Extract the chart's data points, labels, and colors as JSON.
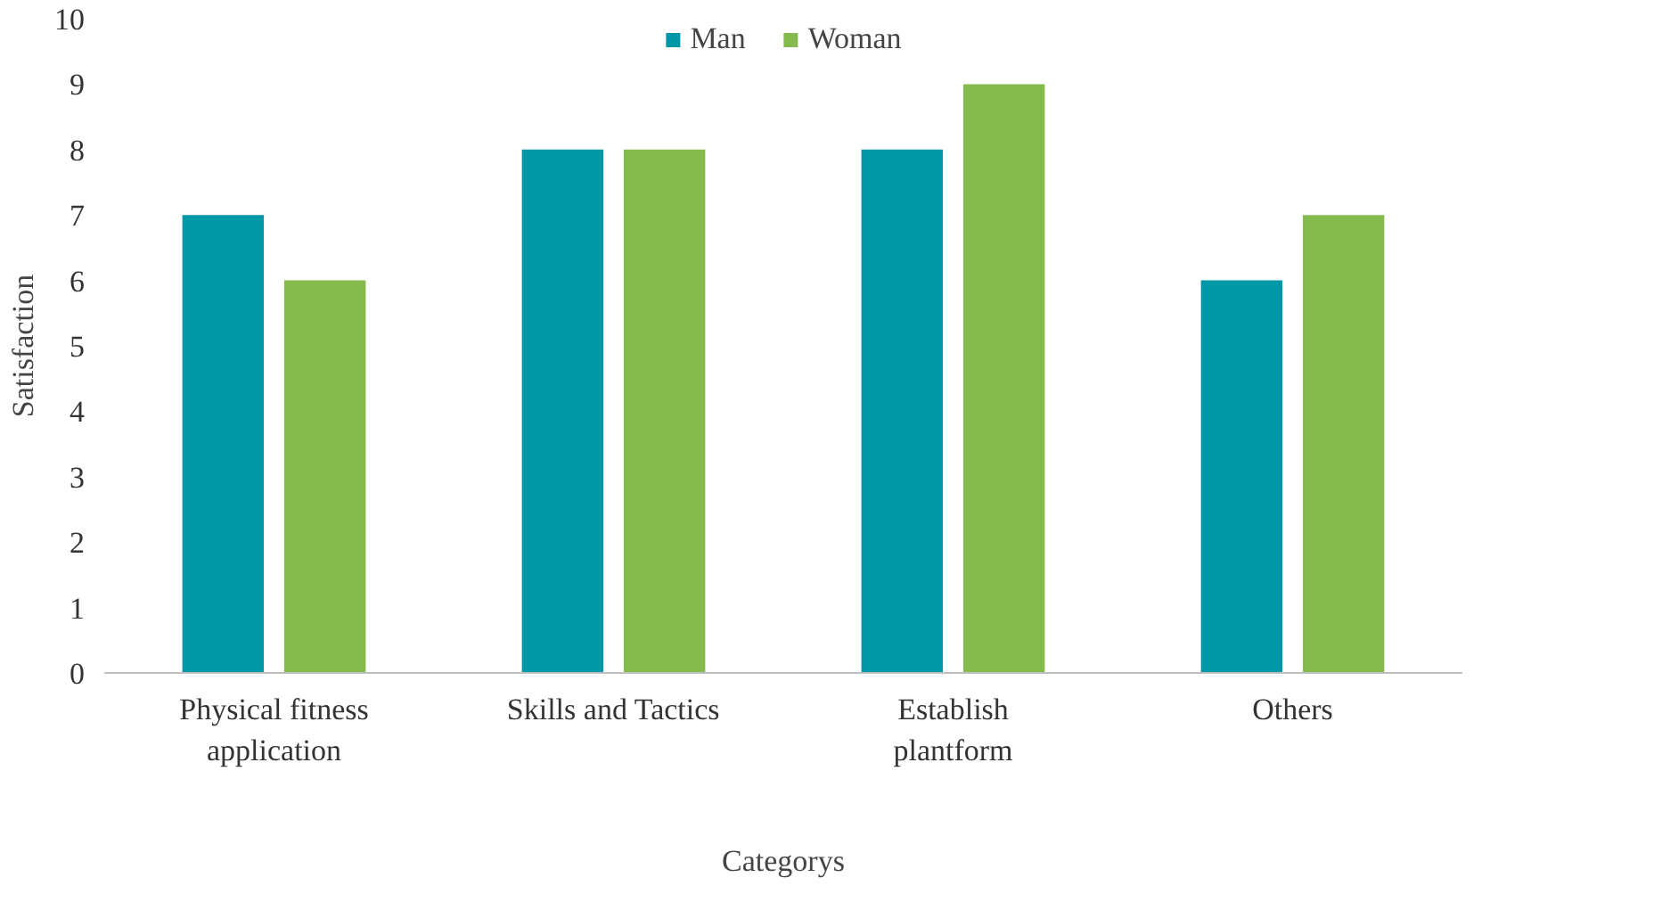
{
  "chart_data": {
    "type": "bar",
    "xlabel": "Categorys",
    "ylabel": "Satisfaction",
    "categories": [
      "Physical fitness application",
      "Skills and Tactics",
      "Establish plantform",
      "Others"
    ],
    "series": [
      {
        "name": "Man",
        "color": "#0097a7",
        "values": [
          7,
          8,
          8,
          6
        ]
      },
      {
        "name": "Woman",
        "color": "#84bb4c",
        "values": [
          6,
          8,
          9,
          7
        ]
      }
    ],
    "ylim": [
      0,
      10
    ],
    "yticks": [
      0,
      1,
      2,
      3,
      4,
      5,
      6,
      7,
      8,
      9,
      10
    ],
    "grid": false,
    "legend": "top"
  }
}
